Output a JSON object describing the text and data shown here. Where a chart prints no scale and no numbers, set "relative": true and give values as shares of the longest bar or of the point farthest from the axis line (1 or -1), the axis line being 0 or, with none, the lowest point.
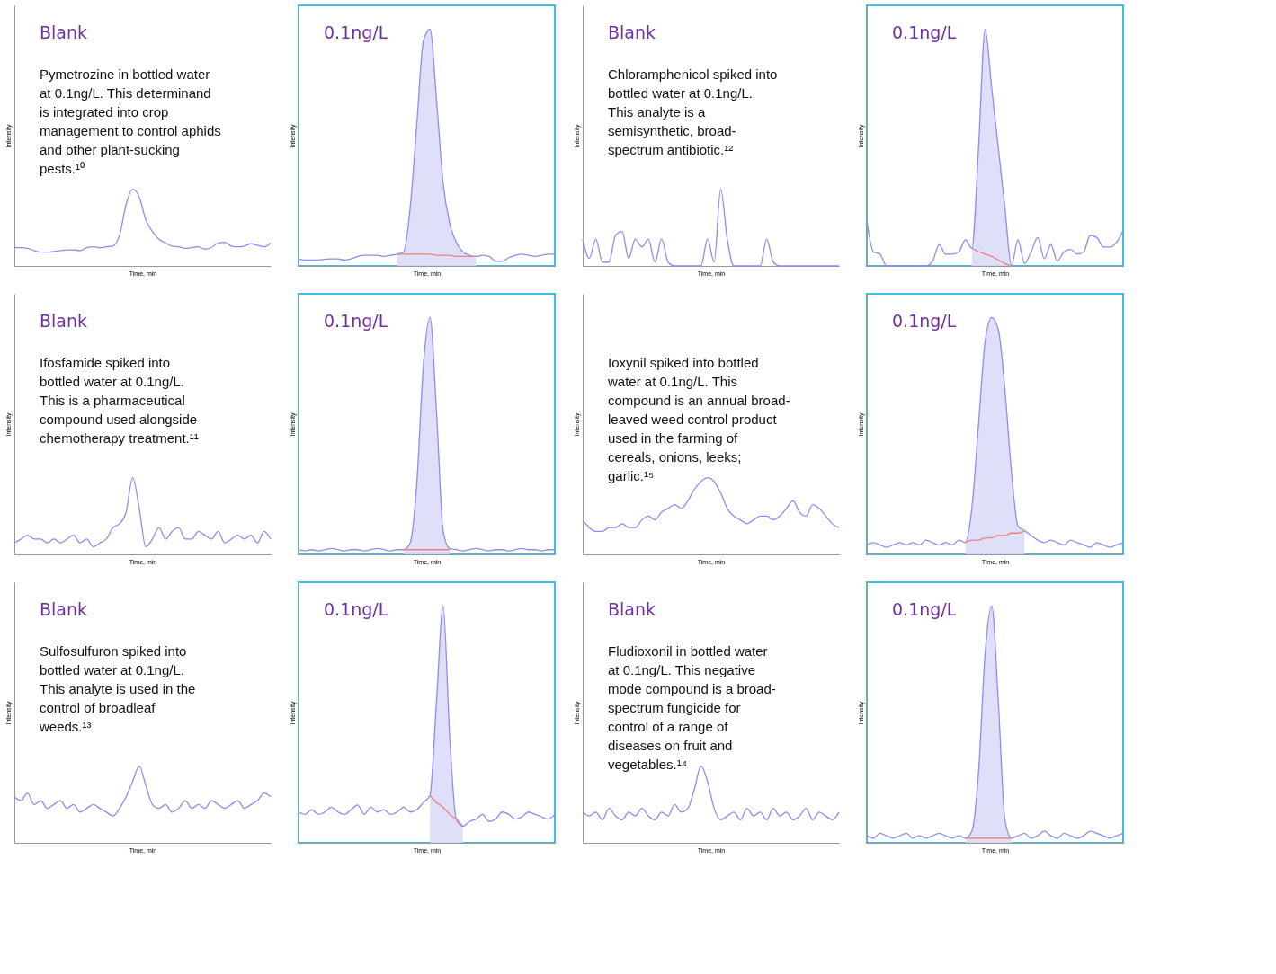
{
  "chart_data": [
    {
      "type": "line",
      "relative": true,
      "xlabel": "Time, min",
      "ylabel": "Intensity",
      "annotations": [
        "Blank",
        "Pymetrozine in bottled water at 0.1ng/L. This determinand is integrated into crop management to control aphids and other plant-sucking pests.¹⁰"
      ],
      "categories": [
        null,
        null,
        null,
        null,
        null,
        null,
        null,
        null,
        null,
        null,
        null,
        null,
        null,
        null,
        null,
        null,
        null,
        null,
        null,
        null,
        null,
        null,
        null,
        null,
        null,
        null,
        null,
        null,
        null,
        null,
        null,
        null,
        null,
        null,
        null,
        null,
        null,
        null,
        null,
        null
      ],
      "series": [
        {
          "type": "line",
          "color": "#8c8cf5",
          "values": [
            0.24,
            0.24,
            0.23,
            0.2,
            0.18,
            0.18,
            0.19,
            0.2,
            0.21,
            0.21,
            0.2,
            0.24,
            0.25,
            0.24,
            0.25,
            0.26,
            0.4,
            0.8,
            1.0,
            0.9,
            0.6,
            0.45,
            0.35,
            0.3,
            0.26,
            0.25,
            0.23,
            0.24,
            0.25,
            0.22,
            0.24,
            0.3,
            0.31,
            0.26,
            0.25,
            0.26,
            0.29,
            0.27,
            0.25,
            0.3
          ]
        }
      ]
    },
    {
      "type": "line",
      "relative": true,
      "xlabel": "Time, min",
      "ylabel": "Intensity",
      "annotations": [
        "0.1ng/L"
      ],
      "categories": [
        null,
        null,
        null,
        null,
        null,
        null,
        null,
        null,
        null,
        null,
        null,
        null,
        null,
        null,
        null,
        null,
        null,
        null,
        null,
        null,
        null,
        null,
        null,
        null,
        null,
        null,
        null,
        null,
        null,
        null,
        null,
        null,
        null,
        null,
        null,
        null,
        null,
        null,
        null,
        null
      ],
      "series": [
        {
          "type": "area",
          "color": "#dcdcfa",
          "values": [
            null,
            null,
            null,
            null,
            null,
            null,
            null,
            null,
            null,
            null,
            null,
            null,
            null,
            null,
            null,
            0.05,
            0.06,
            0.25,
            0.6,
            0.95,
            1.0,
            0.7,
            0.35,
            0.18,
            0.1,
            0.06,
            0.045,
            0.04,
            null,
            null,
            null,
            null,
            null,
            null,
            null,
            null,
            null,
            null,
            null,
            null
          ]
        },
        {
          "type": "line",
          "color": "#8c8cf5",
          "values": [
            0.03,
            0.025,
            0.025,
            0.025,
            0.028,
            0.03,
            0.03,
            0.025,
            0.03,
            0.04,
            0.045,
            0.045,
            0.045,
            0.04,
            0.045,
            0.05,
            0.06,
            0.25,
            0.6,
            0.95,
            1.0,
            0.7,
            0.35,
            0.18,
            0.1,
            0.06,
            0.045,
            0.04,
            0.045,
            0.04,
            0.02,
            0.02,
            0.035,
            0.045,
            0.05,
            0.045,
            0.04,
            0.045,
            0.05,
            0.05
          ]
        },
        {
          "type": "line",
          "color": "#f08080",
          "values": [
            null,
            null,
            null,
            null,
            null,
            null,
            null,
            null,
            null,
            null,
            null,
            null,
            null,
            null,
            null,
            0.05,
            0.05,
            0.05,
            0.05,
            0.05,
            0.05,
            0.045,
            0.045,
            0.045,
            0.04,
            0.04,
            0.04,
            0.04,
            null,
            null,
            null,
            null,
            null,
            null,
            null,
            null,
            null,
            null,
            null,
            null
          ]
        }
      ]
    },
    {
      "type": "line",
      "relative": true,
      "xlabel": "Time, min",
      "ylabel": "Intensity",
      "annotations": [
        "Blank",
        "Chloramphenicol spiked into bottled water at 0.1ng/L. This analyte is a semisynthetic, broad-spectrum antibiotic.¹²"
      ],
      "categories": [
        null,
        null,
        null,
        null,
        null,
        null,
        null,
        null,
        null,
        null,
        null,
        null,
        null,
        null,
        null,
        null,
        null,
        null,
        null,
        null,
        null,
        null,
        null,
        null,
        null,
        null,
        null,
        null,
        null,
        null,
        null,
        null,
        null,
        null,
        null,
        null,
        null,
        null,
        null,
        null
      ],
      "series": [
        {
          "type": "line",
          "color": "#8c8cf5",
          "values": [
            0.35,
            0.1,
            0.35,
            0.05,
            0.05,
            0.4,
            0.45,
            0.1,
            0.35,
            0.25,
            0.35,
            0.05,
            0.35,
            0.05,
            0,
            0,
            0,
            0,
            0,
            0.35,
            0.05,
            1.0,
            0.35,
            0,
            0,
            0,
            0,
            0,
            0.35,
            0.05,
            0,
            0,
            0,
            0,
            0,
            0,
            0,
            0,
            0,
            0
          ]
        }
      ]
    },
    {
      "type": "line",
      "relative": true,
      "xlabel": "Time, min",
      "ylabel": "Intensity",
      "annotations": [
        "0.1ng/L"
      ],
      "categories": [
        null,
        null,
        null,
        null,
        null,
        null,
        null,
        null,
        null,
        null,
        null,
        null,
        null,
        null,
        null,
        null,
        null,
        null,
        null,
        null,
        null,
        null,
        null,
        null,
        null,
        null,
        null,
        null,
        null,
        null,
        null,
        null,
        null,
        null,
        null,
        null,
        null,
        null,
        null,
        null
      ],
      "series": [
        {
          "type": "area",
          "color": "#dcdcfa",
          "values": [
            null,
            null,
            null,
            null,
            null,
            null,
            null,
            null,
            null,
            null,
            null,
            null,
            null,
            null,
            null,
            null,
            0.075,
            0.5,
            1.0,
            0.75,
            0.5,
            0.25,
            0,
            null,
            null,
            null,
            null,
            null,
            null,
            null,
            null,
            null,
            null,
            null,
            null,
            null,
            null,
            null,
            null,
            null
          ]
        },
        {
          "type": "line",
          "color": "#8c8cf5",
          "values": [
            0.19,
            0.06,
            0.05,
            0,
            0,
            0,
            0,
            0,
            0,
            0,
            0.02,
            0.09,
            0.05,
            0.05,
            0.06,
            0.11,
            0.075,
            0.5,
            1.0,
            0.75,
            0.5,
            0.25,
            0,
            0.11,
            0.01,
            0.06,
            0.12,
            0.03,
            0.09,
            0.02,
            0.06,
            0.07,
            0.05,
            0.06,
            0.13,
            0.12,
            0.08,
            0.08,
            0.1,
            0.15
          ]
        },
        {
          "type": "line",
          "color": "#f08080",
          "values": [
            null,
            null,
            null,
            null,
            null,
            null,
            null,
            null,
            null,
            null,
            null,
            null,
            null,
            null,
            null,
            null,
            0.075,
            0.06,
            0.05,
            0.04,
            0.025,
            0.01,
            0,
            null,
            null,
            null,
            null,
            null,
            null,
            null,
            null,
            null,
            null,
            null,
            null,
            null,
            null,
            null,
            null,
            null
          ]
        }
      ]
    },
    {
      "type": "line",
      "relative": true,
      "xlabel": "Time, min",
      "ylabel": "Intensity",
      "annotations": [
        "Blank",
        "Ifosfamide spiked into bottled water at 0.1ng/L. This is a pharmaceutical compound used alongside chemotherapy treatment.¹¹"
      ],
      "categories": [
        null,
        null,
        null,
        null,
        null,
        null,
        null,
        null,
        null,
        null,
        null,
        null,
        null,
        null,
        null,
        null,
        null,
        null,
        null,
        null,
        null,
        null,
        null,
        null,
        null,
        null,
        null,
        null,
        null,
        null,
        null,
        null,
        null,
        null,
        null,
        null,
        null,
        null,
        null,
        null
      ],
      "series": [
        {
          "type": "line",
          "color": "#8c8cf5",
          "values": [
            0.15,
            0.2,
            0.25,
            0.2,
            0.2,
            0.15,
            0.2,
            0.15,
            0.2,
            0.25,
            0.15,
            0.2,
            0.1,
            0.15,
            0.2,
            0.35,
            0.4,
            0.55,
            1.0,
            0.6,
            0.1,
            0.2,
            0.35,
            0.2,
            0.3,
            0.35,
            0.2,
            0.2,
            0.3,
            0.25,
            0.2,
            0.3,
            0.15,
            0.2,
            0.25,
            0.2,
            0.25,
            0.15,
            0.3,
            0.2
          ]
        }
      ]
    },
    {
      "type": "line",
      "relative": true,
      "xlabel": "Time, min",
      "ylabel": "Intensity",
      "annotations": [
        "0.1ng/L"
      ],
      "categories": [
        null,
        null,
        null,
        null,
        null,
        null,
        null,
        null,
        null,
        null,
        null,
        null,
        null,
        null,
        null,
        null,
        null,
        null,
        null,
        null,
        null,
        null,
        null,
        null,
        null,
        null,
        null,
        null,
        null,
        null,
        null,
        null,
        null,
        null,
        null,
        null,
        null,
        null,
        null,
        null
      ],
      "series": [
        {
          "type": "area",
          "color": "#dcdcfa",
          "values": [
            null,
            null,
            null,
            null,
            null,
            null,
            null,
            null,
            null,
            null,
            null,
            null,
            null,
            null,
            null,
            null,
            0.02,
            0.05,
            0.3,
            0.8,
            1.0,
            0.6,
            0.1,
            0.025,
            null,
            null,
            null,
            null,
            null,
            null,
            null,
            null,
            null,
            null,
            null,
            null,
            null,
            null,
            null,
            null
          ]
        },
        {
          "type": "line",
          "color": "#8c8cf5",
          "values": [
            0.02,
            0.015,
            0.02,
            0.015,
            0.02,
            0.025,
            0.02,
            0.015,
            0.02,
            0.02,
            0.015,
            0.02,
            0.025,
            0.02,
            0.015,
            0.02,
            0.02,
            0.05,
            0.3,
            0.8,
            1.0,
            0.6,
            0.1,
            0.025,
            0.02,
            0.015,
            0.02,
            0.025,
            0.02,
            0.015,
            0.02,
            0.02,
            0.015,
            0.02,
            0.025,
            0.02,
            0.02,
            0.015,
            0.02,
            0.02
          ]
        },
        {
          "type": "line",
          "color": "#f08080",
          "values": [
            null,
            null,
            null,
            null,
            null,
            null,
            null,
            null,
            null,
            null,
            null,
            null,
            null,
            null,
            null,
            null,
            0.02,
            0.02,
            0.02,
            0.02,
            0.02,
            0.02,
            0.02,
            0.02,
            null,
            null,
            null,
            null,
            null,
            null,
            null,
            null,
            null,
            null,
            null,
            null,
            null,
            null,
            null,
            null
          ]
        }
      ]
    },
    {
      "type": "line",
      "relative": true,
      "xlabel": "Time, min",
      "ylabel": "Intensity",
      "annotations": [
        "Ioxynil spiked into bottled water at 0.1ng/L. This compound is an annual broad-leaved weed control product used in the farming of cereals, onions, leeks; garlic.¹⁵"
      ],
      "categories": [
        null,
        null,
        null,
        null,
        null,
        null,
        null,
        null,
        null,
        null,
        null,
        null,
        null,
        null,
        null,
        null,
        null,
        null,
        null,
        null,
        null,
        null,
        null,
        null,
        null,
        null,
        null,
        null,
        null,
        null,
        null,
        null,
        null,
        null,
        null,
        null,
        null,
        null,
        null,
        null
      ],
      "series": [
        {
          "type": "line",
          "color": "#8c8cf5",
          "values": [
            0.45,
            0.35,
            0.3,
            0.3,
            0.35,
            0.35,
            0.4,
            0.35,
            0.35,
            0.45,
            0.5,
            0.45,
            0.55,
            0.6,
            0.65,
            0.6,
            0.7,
            0.85,
            0.95,
            1.0,
            0.95,
            0.8,
            0.6,
            0.5,
            0.45,
            0.4,
            0.45,
            0.5,
            0.5,
            0.45,
            0.5,
            0.6,
            0.7,
            0.55,
            0.5,
            0.65,
            0.6,
            0.5,
            0.4,
            0.35
          ]
        }
      ]
    },
    {
      "type": "line",
      "relative": true,
      "xlabel": "Time, min",
      "ylabel": "Intensity",
      "annotations": [
        "0.1ng/L"
      ],
      "categories": [
        null,
        null,
        null,
        null,
        null,
        null,
        null,
        null,
        null,
        null,
        null,
        null,
        null,
        null,
        null,
        null,
        null,
        null,
        null,
        null,
        null,
        null,
        null,
        null,
        null,
        null,
        null,
        null,
        null,
        null,
        null,
        null,
        null,
        null,
        null,
        null,
        null,
        null,
        null,
        null
      ],
      "series": [
        {
          "type": "area",
          "color": "#dcdcfa",
          "values": [
            null,
            null,
            null,
            null,
            null,
            null,
            null,
            null,
            null,
            null,
            null,
            null,
            null,
            null,
            null,
            0.05,
            0.2,
            0.55,
            0.9,
            1.0,
            0.95,
            0.7,
            0.35,
            0.12,
            0.1,
            null,
            null,
            null,
            null,
            null,
            null,
            null,
            null,
            null,
            null,
            null,
            null,
            null,
            null,
            null
          ]
        },
        {
          "type": "line",
          "color": "#8c8cf5",
          "values": [
            0.04,
            0.05,
            0.04,
            0.03,
            0.04,
            0.05,
            0.04,
            0.05,
            0.04,
            0.06,
            0.05,
            0.04,
            0.05,
            0.04,
            0.06,
            0.05,
            0.2,
            0.55,
            0.9,
            1.0,
            0.95,
            0.7,
            0.35,
            0.12,
            0.1,
            0.08,
            0.06,
            0.05,
            0.06,
            0.05,
            0.04,
            0.06,
            0.05,
            0.04,
            0.03,
            0.05,
            0.04,
            0.03,
            0.04,
            0.05
          ]
        },
        {
          "type": "line",
          "color": "#f08080",
          "values": [
            null,
            null,
            null,
            null,
            null,
            null,
            null,
            null,
            null,
            null,
            null,
            null,
            null,
            null,
            null,
            0.05,
            0.06,
            0.06,
            0.07,
            0.07,
            0.08,
            0.08,
            0.09,
            0.09,
            0.1,
            null,
            null,
            null,
            null,
            null,
            null,
            null,
            null,
            null,
            null,
            null,
            null,
            null,
            null,
            null
          ]
        }
      ]
    },
    {
      "type": "line",
      "relative": true,
      "xlabel": "Time, min",
      "ylabel": "Intensity",
      "annotations": [
        "Blank",
        "Sulfosulfuron spiked into bottled water at 0.1ng/L. This analyte is used in the control of broadleaf weeds.¹³"
      ],
      "categories": [
        null,
        null,
        null,
        null,
        null,
        null,
        null,
        null,
        null,
        null,
        null,
        null,
        null,
        null,
        null,
        null,
        null,
        null,
        null,
        null,
        null,
        null,
        null,
        null,
        null,
        null,
        null,
        null,
        null,
        null,
        null,
        null,
        null,
        null,
        null,
        null,
        null,
        null,
        null,
        null
      ],
      "series": [
        {
          "type": "line",
          "color": "#8c8cf5",
          "values": [
            0.6,
            0.55,
            0.65,
            0.5,
            0.55,
            0.45,
            0.5,
            0.55,
            0.45,
            0.5,
            0.4,
            0.45,
            0.5,
            0.45,
            0.4,
            0.35,
            0.45,
            0.6,
            0.8,
            1.0,
            0.75,
            0.5,
            0.45,
            0.5,
            0.4,
            0.45,
            0.55,
            0.45,
            0.5,
            0.45,
            0.55,
            0.5,
            0.45,
            0.5,
            0.55,
            0.45,
            0.5,
            0.55,
            0.65,
            0.6
          ]
        }
      ]
    },
    {
      "type": "line",
      "relative": true,
      "xlabel": "Time, min",
      "ylabel": "Intensity",
      "annotations": [
        "0.1ng/L"
      ],
      "categories": [
        null,
        null,
        null,
        null,
        null,
        null,
        null,
        null,
        null,
        null,
        null,
        null,
        null,
        null,
        null,
        null,
        null,
        null,
        null,
        null,
        null,
        null,
        null,
        null,
        null,
        null,
        null,
        null,
        null,
        null,
        null,
        null,
        null,
        null,
        null,
        null,
        null,
        null,
        null,
        null
      ],
      "series": [
        {
          "type": "area",
          "color": "#dcdcfa",
          "values": [
            null,
            null,
            null,
            null,
            null,
            null,
            null,
            null,
            null,
            null,
            null,
            null,
            null,
            null,
            null,
            null,
            null,
            null,
            null,
            null,
            0.2,
            0.6,
            1.0,
            0.45,
            0.1,
            0.07,
            null,
            null,
            null,
            null,
            null,
            null,
            null,
            null,
            null,
            null,
            null,
            null,
            null,
            null
          ]
        },
        {
          "type": "line",
          "color": "#8c8cf5",
          "values": [
            0.13,
            0.12,
            0.14,
            0.12,
            0.13,
            0.15,
            0.13,
            0.12,
            0.14,
            0.16,
            0.12,
            0.15,
            0.13,
            0.14,
            0.12,
            0.13,
            0.15,
            0.13,
            0.14,
            0.17,
            0.2,
            0.6,
            1.0,
            0.45,
            0.1,
            0.07,
            0.09,
            0.1,
            0.12,
            0.09,
            0.1,
            0.13,
            0.12,
            0.1,
            0.11,
            0.13,
            0.12,
            0.11,
            0.1,
            0.12
          ]
        },
        {
          "type": "line",
          "color": "#f08080",
          "values": [
            null,
            null,
            null,
            null,
            null,
            null,
            null,
            null,
            null,
            null,
            null,
            null,
            null,
            null,
            null,
            null,
            null,
            null,
            null,
            null,
            0.2,
            0.17,
            0.15,
            0.12,
            0.1,
            0.07,
            null,
            null,
            null,
            null,
            null,
            null,
            null,
            null,
            null,
            null,
            null,
            null,
            null,
            null
          ]
        }
      ]
    },
    {
      "type": "line",
      "relative": true,
      "xlabel": "Time, min",
      "ylabel": "Intensity",
      "annotations": [
        "Blank",
        "Fludioxonil in bottled water at 0.1ng/L. This negative mode compound is a broad-spectrum fungicide for control of a range of diseases on fruit and vegetables.¹⁴"
      ],
      "categories": [
        null,
        null,
        null,
        null,
        null,
        null,
        null,
        null,
        null,
        null,
        null,
        null,
        null,
        null,
        null,
        null,
        null,
        null,
        null,
        null,
        null,
        null,
        null,
        null,
        null,
        null,
        null,
        null,
        null,
        null,
        null,
        null,
        null,
        null,
        null,
        null,
        null,
        null,
        null,
        null
      ],
      "series": [
        {
          "type": "line",
          "color": "#8c8cf5",
          "values": [
            0.4,
            0.35,
            0.4,
            0.3,
            0.45,
            0.35,
            0.3,
            0.4,
            0.35,
            0.45,
            0.35,
            0.3,
            0.4,
            0.35,
            0.5,
            0.4,
            0.45,
            0.7,
            1.0,
            0.8,
            0.45,
            0.3,
            0.35,
            0.4,
            0.3,
            0.45,
            0.35,
            0.4,
            0.3,
            0.45,
            0.35,
            0.4,
            0.3,
            0.35,
            0.45,
            0.3,
            0.4,
            0.35,
            0.3,
            0.4
          ]
        }
      ]
    },
    {
      "type": "line",
      "relative": true,
      "xlabel": "Time, min",
      "ylabel": "Intensity",
      "annotations": [
        "0.1ng/L"
      ],
      "categories": [
        null,
        null,
        null,
        null,
        null,
        null,
        null,
        null,
        null,
        null,
        null,
        null,
        null,
        null,
        null,
        null,
        null,
        null,
        null,
        null,
        null,
        null,
        null,
        null,
        null,
        null,
        null,
        null,
        null,
        null,
        null,
        null,
        null,
        null,
        null,
        null,
        null,
        null,
        null,
        null
      ],
      "series": [
        {
          "type": "area",
          "color": "#dcdcfa",
          "values": [
            null,
            null,
            null,
            null,
            null,
            null,
            null,
            null,
            null,
            null,
            null,
            null,
            null,
            null,
            null,
            0.02,
            0.05,
            0.3,
            0.8,
            1.0,
            0.6,
            0.1,
            0.02,
            null,
            null,
            null,
            null,
            null,
            null,
            null,
            null,
            null,
            null,
            null,
            null,
            null,
            null,
            null,
            null,
            null
          ]
        },
        {
          "type": "line",
          "color": "#8c8cf5",
          "values": [
            0.03,
            0.02,
            0.04,
            0.03,
            0.02,
            0.03,
            0.04,
            0.02,
            0.03,
            0.02,
            0.03,
            0.04,
            0.03,
            0.02,
            0.03,
            0.02,
            0.05,
            0.3,
            0.8,
            1.0,
            0.6,
            0.1,
            0.02,
            0.03,
            0.04,
            0.02,
            0.03,
            0.05,
            0.03,
            0.02,
            0.04,
            0.03,
            0.02,
            0.03,
            0.05,
            0.04,
            0.03,
            0.02,
            0.03,
            0.04
          ]
        },
        {
          "type": "line",
          "color": "#f08080",
          "values": [
            null,
            null,
            null,
            null,
            null,
            null,
            null,
            null,
            null,
            null,
            null,
            null,
            null,
            null,
            null,
            0.02,
            0.02,
            0.02,
            0.02,
            0.02,
            0.02,
            0.02,
            0.02,
            null,
            null,
            null,
            null,
            null,
            null,
            null,
            null,
            null,
            null,
            null,
            null,
            null,
            null,
            null,
            null,
            null
          ]
        }
      ]
    }
  ]
}
